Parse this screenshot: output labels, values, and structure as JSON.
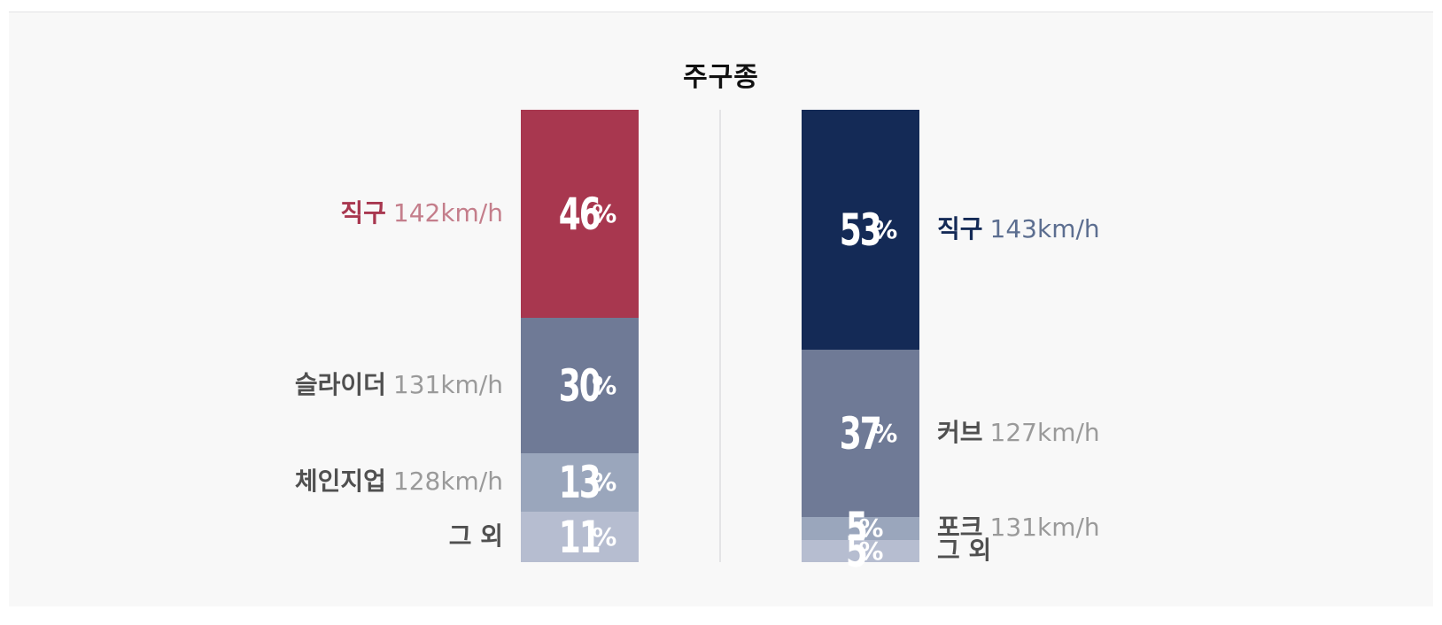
{
  "chart_data": {
    "type": "bar",
    "title": "주구종",
    "unit": "%",
    "colors": {
      "left_primary": "#a8374f",
      "left_primary_speed": "#c47e8b",
      "right_primary": "#142a56",
      "right_primary_speed": "#5c6e90",
      "secondary": "#6f7a96",
      "tertiary": "#9aa6bc",
      "other": "#b6bdd0",
      "label_gray": "#505050",
      "speed_gray": "#9a9a9a"
    },
    "stacks": [
      {
        "side": "left",
        "segments": [
          {
            "name": "직구",
            "speed": "142km/h",
            "value": 46,
            "pct": "46",
            "sym": "%"
          },
          {
            "name": "슬라이더",
            "speed": "131km/h",
            "value": 30,
            "pct": "30",
            "sym": "%"
          },
          {
            "name": "체인지업",
            "speed": "128km/h",
            "value": 13,
            "pct": "13",
            "sym": "%"
          },
          {
            "name": "그 외",
            "speed": "",
            "value": 11,
            "pct": "11",
            "sym": "%"
          }
        ]
      },
      {
        "side": "right",
        "segments": [
          {
            "name": "직구",
            "speed": "143km/h",
            "value": 53,
            "pct": "53",
            "sym": "%"
          },
          {
            "name": "커브",
            "speed": "127km/h",
            "value": 37,
            "pct": "37",
            "sym": "%"
          },
          {
            "name": "포크",
            "speed": "131km/h",
            "value": 5,
            "pct": "5",
            "sym": "%"
          },
          {
            "name": "그 외",
            "speed": "",
            "value": 5,
            "pct": "5",
            "sym": "%"
          }
        ]
      }
    ]
  }
}
